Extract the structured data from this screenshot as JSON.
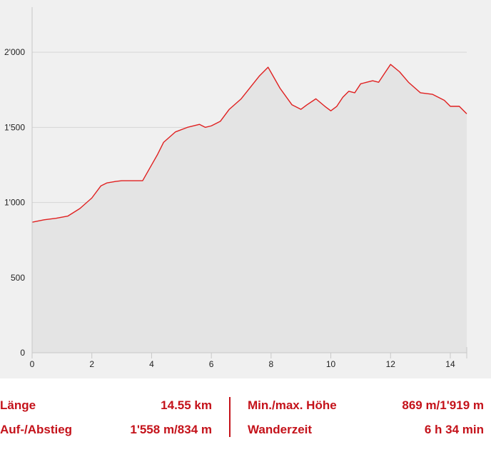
{
  "chart_data": {
    "type": "area",
    "title": "",
    "xlabel": "",
    "ylabel": "",
    "xlim": [
      0,
      14.55
    ],
    "ylim": [
      0,
      2300
    ],
    "x_ticks": [
      0,
      2,
      4,
      6,
      8,
      10,
      12,
      14
    ],
    "x_tick_labels": [
      "0",
      "2",
      "4",
      "6",
      "8",
      "10",
      "12",
      "14"
    ],
    "y_ticks": [
      0,
      500,
      1000,
      1500,
      2000
    ],
    "y_tick_labels": [
      "0",
      "500",
      "1'000",
      "1'500",
      "2'000"
    ],
    "grid": "horizontal",
    "line_color": "#e02020",
    "fill_color": "#e4e4e4",
    "series": [
      {
        "x": [
          0,
          0.4,
          0.8,
          1.2,
          1.6,
          2.0,
          2.3,
          2.5,
          2.8,
          3.0,
          3.4,
          3.7,
          4.0,
          4.2,
          4.4,
          4.8,
          5.2,
          5.6,
          5.8,
          6.0,
          6.3,
          6.6,
          7.0,
          7.2,
          7.4,
          7.6,
          7.9,
          8.3,
          8.7,
          9.0,
          9.2,
          9.5,
          9.8,
          10.0,
          10.2,
          10.4,
          10.6,
          10.8,
          11.0,
          11.2,
          11.4,
          11.6,
          11.8,
          12.0,
          12.3,
          12.6,
          13.0,
          13.4,
          13.8,
          14.0,
          14.3,
          14.55
        ],
        "y": [
          869,
          885,
          895,
          910,
          960,
          1030,
          1110,
          1130,
          1140,
          1145,
          1145,
          1145,
          1250,
          1320,
          1400,
          1470,
          1500,
          1520,
          1500,
          1510,
          1540,
          1620,
          1690,
          1740,
          1790,
          1840,
          1900,
          1760,
          1650,
          1620,
          1650,
          1690,
          1640,
          1610,
          1640,
          1700,
          1740,
          1730,
          1790,
          1800,
          1810,
          1800,
          1860,
          1919,
          1870,
          1800,
          1730,
          1720,
          1680,
          1640,
          1640,
          1590
        ]
      }
    ]
  },
  "stats": {
    "length_label": "Länge",
    "length_value": "14.55 km",
    "ascent_label": "Auf-/Abstieg",
    "ascent_value": "1'558 m/834 m",
    "minmax_label": "Min./max. Höhe",
    "minmax_value": "869 m/1'919 m",
    "time_label": "Wanderzeit",
    "time_value": "6 h 34 min"
  }
}
